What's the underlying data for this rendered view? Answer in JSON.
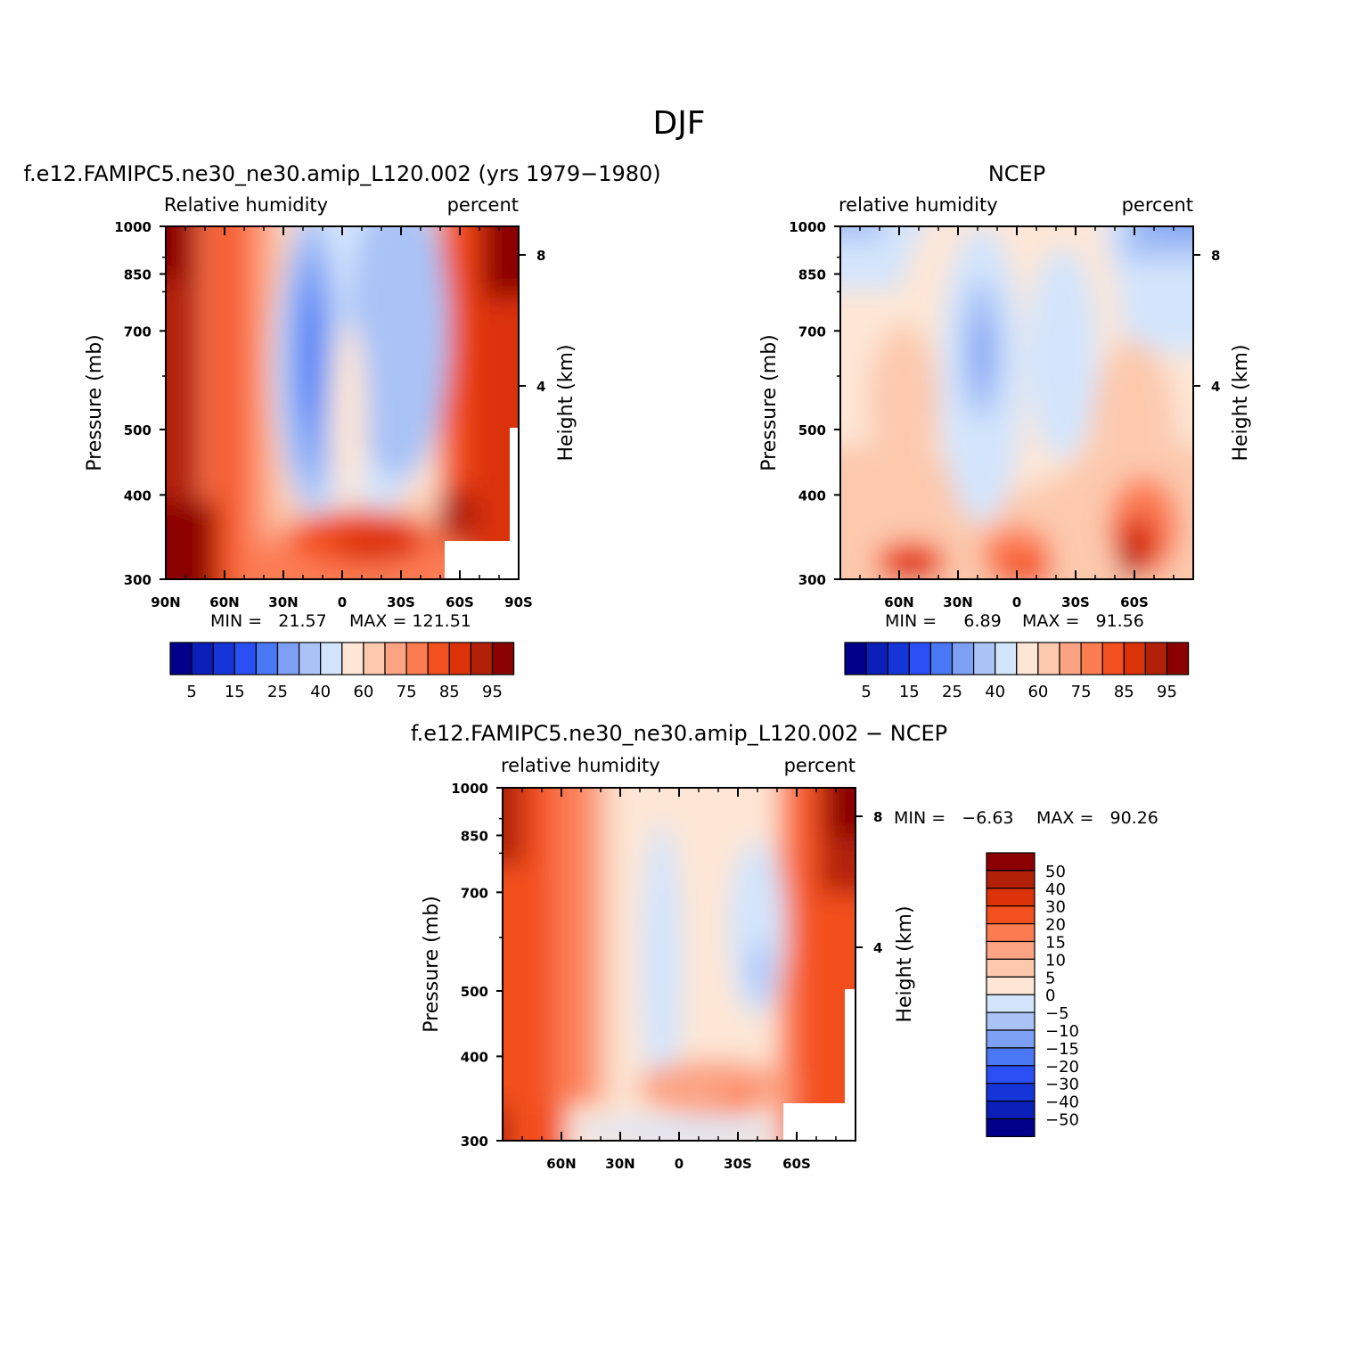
{
  "chart_data": [
    {
      "type": "heatmap",
      "title": "f.e12.FAMIPC5.ne30_ne30.amip_L120.002 (yrs 1979−1980)",
      "left_subtitle": "Relative humidity",
      "right_subtitle": "percent",
      "ylabel": "Pressure (mb)",
      "ylabel_right": "Height (km)",
      "xlim": [
        90,
        -90
      ],
      "ylim": [
        1000,
        300
      ],
      "yticks": [
        {
          "value": 300,
          "label": "300"
        },
        {
          "value": 400,
          "label": "400"
        },
        {
          "value": 500,
          "label": "500"
        },
        {
          "value": 700,
          "label": "700"
        },
        {
          "value": 850,
          "label": "850"
        },
        {
          "value": 1000,
          "label": "1000"
        }
      ],
      "xticks": [
        {
          "value": 90,
          "label": "90N"
        },
        {
          "value": 60,
          "label": "60N"
        },
        {
          "value": 30,
          "label": "30N"
        },
        {
          "value": 0,
          "label": "0"
        },
        {
          "value": -30,
          "label": "30S"
        },
        {
          "value": -60,
          "label": "60S"
        },
        {
          "value": -90,
          "label": "90S"
        }
      ],
      "height_ticks": [
        {
          "value": 8,
          "label": "8"
        },
        {
          "value": 4,
          "label": "4"
        }
      ],
      "min_text": "MIN =   21.57",
      "max_text": "MAX = 121.51",
      "levels": [
        5,
        10,
        15,
        20,
        25,
        30,
        40,
        50,
        60,
        70,
        75,
        80,
        85,
        90,
        95
      ],
      "level_labels": [
        "5",
        "15",
        "25",
        "40",
        "60",
        "75",
        "85",
        "95"
      ],
      "colorbar_orientation": "horizontal"
    },
    {
      "type": "heatmap",
      "title": "NCEP",
      "left_subtitle": "relative humidity",
      "right_subtitle": "percent",
      "ylabel": "Pressure (mb)",
      "ylabel_right": "Height (km)",
      "xlim": [
        90,
        -90
      ],
      "ylim": [
        1000,
        300
      ],
      "yticks": [
        {
          "value": 300,
          "label": "300"
        },
        {
          "value": 400,
          "label": "400"
        },
        {
          "value": 500,
          "label": "500"
        },
        {
          "value": 700,
          "label": "700"
        },
        {
          "value": 850,
          "label": "850"
        },
        {
          "value": 1000,
          "label": "1000"
        }
      ],
      "xticks": [
        {
          "value": 60,
          "label": "60N"
        },
        {
          "value": 30,
          "label": "30N"
        },
        {
          "value": 0,
          "label": "0"
        },
        {
          "value": -30,
          "label": "30S"
        },
        {
          "value": -60,
          "label": "60S"
        }
      ],
      "height_ticks": [
        {
          "value": 8,
          "label": "8"
        },
        {
          "value": 4,
          "label": "4"
        }
      ],
      "min_text": "MIN =     6.89",
      "max_text": "MAX =   91.56",
      "levels": [
        5,
        10,
        15,
        20,
        25,
        30,
        40,
        50,
        60,
        70,
        75,
        80,
        85,
        90,
        95
      ],
      "level_labels": [
        "5",
        "15",
        "25",
        "40",
        "60",
        "75",
        "85",
        "95"
      ],
      "colorbar_orientation": "horizontal"
    },
    {
      "type": "heatmap",
      "title": "f.e12.FAMIPC5.ne30_ne30.amip_L120.002 − NCEP",
      "left_subtitle": "relative humidity",
      "right_subtitle": "percent",
      "ylabel": "Pressure (mb)",
      "ylabel_right": "Height (km)",
      "xlim": [
        90,
        -90
      ],
      "ylim": [
        1000,
        300
      ],
      "yticks": [
        {
          "value": 300,
          "label": "300"
        },
        {
          "value": 400,
          "label": "400"
        },
        {
          "value": 500,
          "label": "500"
        },
        {
          "value": 700,
          "label": "700"
        },
        {
          "value": 850,
          "label": "850"
        },
        {
          "value": 1000,
          "label": "1000"
        }
      ],
      "xticks": [
        {
          "value": 60,
          "label": "60N"
        },
        {
          "value": 30,
          "label": "30N"
        },
        {
          "value": 0,
          "label": "0"
        },
        {
          "value": -30,
          "label": "30S"
        },
        {
          "value": -60,
          "label": "60S"
        }
      ],
      "height_ticks": [
        {
          "value": 8,
          "label": "8"
        },
        {
          "value": 4,
          "label": "4"
        }
      ],
      "min_text": "MIN =   −6.63",
      "max_text": "MAX =   90.26",
      "levels": [
        50,
        40,
        30,
        20,
        15,
        10,
        5,
        0,
        -5,
        -10,
        -15,
        -20,
        -30,
        -40,
        -50
      ],
      "level_labels": [
        "50",
        "40",
        "30",
        "20",
        "15",
        "10",
        "5",
        "0",
        "−5",
        "−10",
        "−15",
        "−20",
        "−30",
        "−40",
        "−50"
      ],
      "colorbar_orientation": "vertical"
    }
  ],
  "figure": {
    "title": "DJF",
    "colors": [
      "#00008b",
      "#0a1fb8",
      "#1535d9",
      "#2a50f5",
      "#4a78f5",
      "#7da0f5",
      "#a9c3f7",
      "#d3e5fc",
      "#fde6d5",
      "#fcc9ad",
      "#fca383",
      "#fc7c52",
      "#f3501f",
      "#db3208",
      "#b22008",
      "#8b0000"
    ]
  }
}
